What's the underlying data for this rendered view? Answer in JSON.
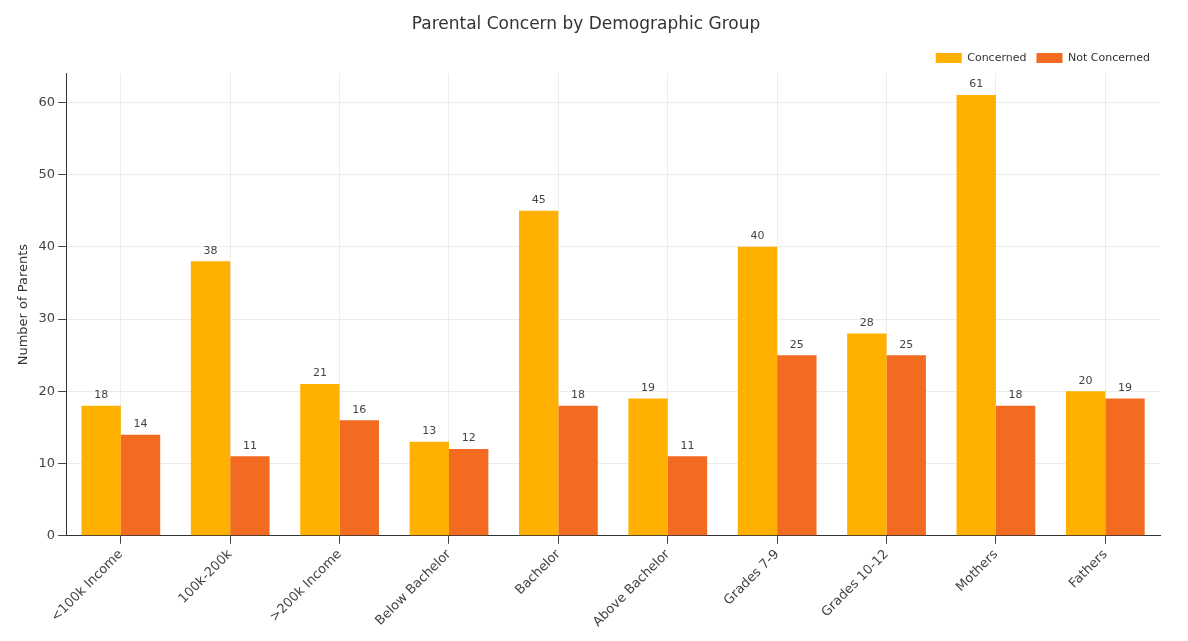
{
  "chart_data": {
    "type": "bar",
    "title": "Parental Concern by Demographic Group",
    "ylabel": "Number of Parents",
    "categories": [
      "<100k Income",
      "100k-200k",
      ">200k Income",
      "Below Bachelor",
      "Bachelor",
      "Above Bachelor",
      "Grades 7-9",
      "Grades 10-12",
      "Mothers",
      "Fathers"
    ],
    "series": [
      {
        "name": "Concerned",
        "color": "#ffb000",
        "values": [
          18,
          38,
          21,
          13,
          45,
          19,
          40,
          28,
          61,
          20
        ]
      },
      {
        "name": "Not Concerned",
        "color": "#f26b21",
        "values": [
          14,
          11,
          16,
          12,
          18,
          11,
          25,
          25,
          18,
          19
        ]
      }
    ],
    "ylim": [
      0,
      64
    ],
    "yticks": [
      0,
      10,
      20,
      30,
      40,
      50,
      60
    ],
    "grid": true,
    "legend": "top right",
    "data_labels": true
  }
}
